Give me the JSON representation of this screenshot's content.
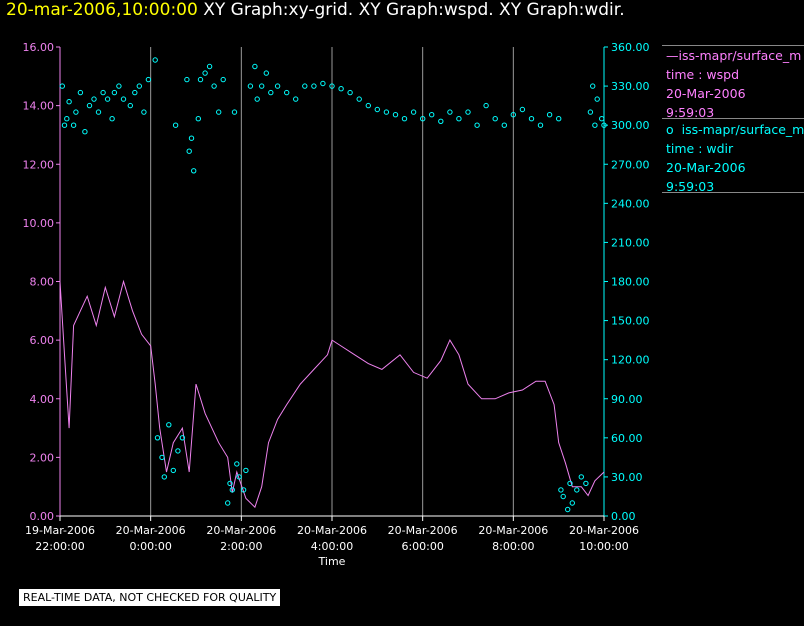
{
  "title": {
    "date": "20-mar-2006,10:00:00",
    "rest": "XY Graph:xy-grid.  XY Graph:wspd.  XY Graph:wdir."
  },
  "legend": {
    "wspd": {
      "name": "iss-mapr/surface_m",
      "line1": "time : wspd",
      "line2": "20-Mar-2006",
      "line3": "9:59:03"
    },
    "wdir": {
      "name": "iss-mapr/surface_m",
      "line1": "time : wdir",
      "line2": "20-Mar-2006",
      "line3": "9:59:03"
    }
  },
  "footer": {
    "note": "REAL-TIME DATA, NOT CHECKED FOR QUALITY"
  },
  "colors": {
    "wspd": "#ee82ee",
    "wdir": "#00ffff",
    "grid": "#9a9a9a",
    "title_date": "#ffff00"
  },
  "chart_data": {
    "type": "line",
    "xlabel": "Time",
    "xlim": [
      0,
      12
    ],
    "x_ticks": [
      {
        "value": 0,
        "line1": "19-Mar-2006",
        "line2": "22:00:00"
      },
      {
        "value": 2,
        "line1": "20-Mar-2006",
        "line2": "0:00:00"
      },
      {
        "value": 4,
        "line1": "20-Mar-2006",
        "line2": "2:00:00"
      },
      {
        "value": 6,
        "line1": "20-Mar-2006",
        "line2": "4:00:00"
      },
      {
        "value": 8,
        "line1": "20-Mar-2006",
        "line2": "6:00:00"
      },
      {
        "value": 10,
        "line1": "20-Mar-2006",
        "line2": "8:00:00"
      },
      {
        "value": 12,
        "line1": "20-Mar-2006",
        "line2": "10:00:00"
      }
    ],
    "left_axis": {
      "ylim": [
        0,
        16
      ],
      "ticks": [
        "0.00",
        "2.00",
        "4.00",
        "6.00",
        "8.00",
        "10.00",
        "12.00",
        "14.00",
        "16.00"
      ]
    },
    "right_axis": {
      "ylim": [
        0,
        360
      ],
      "ticks": [
        "0.00",
        "30.00",
        "60.00",
        "90.00",
        "120.00",
        "150.00",
        "180.00",
        "210.00",
        "240.00",
        "270.00",
        "300.00",
        "330.00",
        "360.00"
      ]
    },
    "x_unit": "hours since 19-Mar-2006 22:00",
    "series": [
      {
        "name": "wspd",
        "kind": "line",
        "axis": "left",
        "points": [
          [
            0,
            8.0
          ],
          [
            0.1,
            5.5
          ],
          [
            0.2,
            3.0
          ],
          [
            0.3,
            6.5
          ],
          [
            0.45,
            7.0
          ],
          [
            0.6,
            7.5
          ],
          [
            0.8,
            6.5
          ],
          [
            1.0,
            7.8
          ],
          [
            1.2,
            6.8
          ],
          [
            1.4,
            8.0
          ],
          [
            1.6,
            7.0
          ],
          [
            1.8,
            6.2
          ],
          [
            2.0,
            5.8
          ],
          [
            2.1,
            4.5
          ],
          [
            2.2,
            3.0
          ],
          [
            2.35,
            1.5
          ],
          [
            2.5,
            2.5
          ],
          [
            2.7,
            3.0
          ],
          [
            2.85,
            1.5
          ],
          [
            3.0,
            4.5
          ],
          [
            3.2,
            3.5
          ],
          [
            3.5,
            2.5
          ],
          [
            3.7,
            2.0
          ],
          [
            3.8,
            0.8
          ],
          [
            3.9,
            1.5
          ],
          [
            4.1,
            0.6
          ],
          [
            4.3,
            0.3
          ],
          [
            4.45,
            1.0
          ],
          [
            4.6,
            2.5
          ],
          [
            4.8,
            3.3
          ],
          [
            5.0,
            3.8
          ],
          [
            5.3,
            4.5
          ],
          [
            5.6,
            5.0
          ],
          [
            5.9,
            5.5
          ],
          [
            6.0,
            6.0
          ],
          [
            6.2,
            5.8
          ],
          [
            6.5,
            5.5
          ],
          [
            6.8,
            5.2
          ],
          [
            7.1,
            5.0
          ],
          [
            7.5,
            5.5
          ],
          [
            7.8,
            4.9
          ],
          [
            8.1,
            4.7
          ],
          [
            8.4,
            5.3
          ],
          [
            8.6,
            6.0
          ],
          [
            8.8,
            5.5
          ],
          [
            9.0,
            4.5
          ],
          [
            9.3,
            4.0
          ],
          [
            9.6,
            4.0
          ],
          [
            9.9,
            4.2
          ],
          [
            10.2,
            4.3
          ],
          [
            10.5,
            4.6
          ],
          [
            10.7,
            4.6
          ],
          [
            10.9,
            3.8
          ],
          [
            11.0,
            2.5
          ],
          [
            11.15,
            1.8
          ],
          [
            11.3,
            1.0
          ],
          [
            11.5,
            1.0
          ],
          [
            11.65,
            0.7
          ],
          [
            11.8,
            1.2
          ],
          [
            12.0,
            1.5
          ]
        ]
      },
      {
        "name": "wdir",
        "kind": "scatter",
        "axis": "right",
        "points": [
          [
            0.05,
            330
          ],
          [
            0.1,
            300
          ],
          [
            0.15,
            305
          ],
          [
            0.2,
            318
          ],
          [
            0.3,
            300
          ],
          [
            0.35,
            310
          ],
          [
            0.45,
            325
          ],
          [
            0.55,
            295
          ],
          [
            0.65,
            315
          ],
          [
            0.75,
            320
          ],
          [
            0.85,
            310
          ],
          [
            0.95,
            325
          ],
          [
            1.05,
            320
          ],
          [
            1.15,
            305
          ],
          [
            1.2,
            325
          ],
          [
            1.3,
            330
          ],
          [
            1.4,
            320
          ],
          [
            1.55,
            315
          ],
          [
            1.65,
            325
          ],
          [
            1.75,
            330
          ],
          [
            1.85,
            310
          ],
          [
            1.95,
            335
          ],
          [
            2.1,
            350
          ],
          [
            2.15,
            60
          ],
          [
            2.25,
            45
          ],
          [
            2.3,
            30
          ],
          [
            2.4,
            70
          ],
          [
            2.5,
            35
          ],
          [
            2.55,
            300
          ],
          [
            2.6,
            50
          ],
          [
            2.7,
            60
          ],
          [
            2.8,
            335
          ],
          [
            2.85,
            280
          ],
          [
            2.9,
            290
          ],
          [
            2.95,
            265
          ],
          [
            3.05,
            305
          ],
          [
            3.1,
            335
          ],
          [
            3.2,
            340
          ],
          [
            3.3,
            345
          ],
          [
            3.4,
            330
          ],
          [
            3.5,
            310
          ],
          [
            3.6,
            335
          ],
          [
            3.7,
            10
          ],
          [
            3.75,
            25
          ],
          [
            3.8,
            20
          ],
          [
            3.85,
            310
          ],
          [
            3.9,
            40
          ],
          [
            3.95,
            30
          ],
          [
            4.05,
            20
          ],
          [
            4.1,
            35
          ],
          [
            4.2,
            330
          ],
          [
            4.3,
            345
          ],
          [
            4.35,
            320
          ],
          [
            4.45,
            330
          ],
          [
            4.55,
            340
          ],
          [
            4.65,
            325
          ],
          [
            4.8,
            330
          ],
          [
            5.0,
            325
          ],
          [
            5.2,
            320
          ],
          [
            5.4,
            330
          ],
          [
            5.6,
            330
          ],
          [
            5.8,
            332
          ],
          [
            6.0,
            330
          ],
          [
            6.2,
            328
          ],
          [
            6.4,
            325
          ],
          [
            6.6,
            320
          ],
          [
            6.8,
            315
          ],
          [
            7.0,
            312
          ],
          [
            7.2,
            310
          ],
          [
            7.4,
            308
          ],
          [
            7.6,
            305
          ],
          [
            7.8,
            310
          ],
          [
            8.0,
            305
          ],
          [
            8.2,
            308
          ],
          [
            8.4,
            303
          ],
          [
            8.6,
            310
          ],
          [
            8.8,
            305
          ],
          [
            9.0,
            310
          ],
          [
            9.2,
            300
          ],
          [
            9.4,
            315
          ],
          [
            9.6,
            305
          ],
          [
            9.8,
            300
          ],
          [
            10.0,
            308
          ],
          [
            10.2,
            312
          ],
          [
            10.4,
            305
          ],
          [
            10.6,
            300
          ],
          [
            10.8,
            308
          ],
          [
            11.0,
            305
          ],
          [
            11.05,
            20
          ],
          [
            11.1,
            15
          ],
          [
            11.2,
            5
          ],
          [
            11.25,
            25
          ],
          [
            11.3,
            10
          ],
          [
            11.4,
            20
          ],
          [
            11.5,
            30
          ],
          [
            11.6,
            25
          ],
          [
            11.7,
            310
          ],
          [
            11.75,
            330
          ],
          [
            11.8,
            300
          ],
          [
            11.85,
            320
          ],
          [
            11.95,
            305
          ],
          [
            12.0,
            300
          ]
        ]
      }
    ]
  }
}
